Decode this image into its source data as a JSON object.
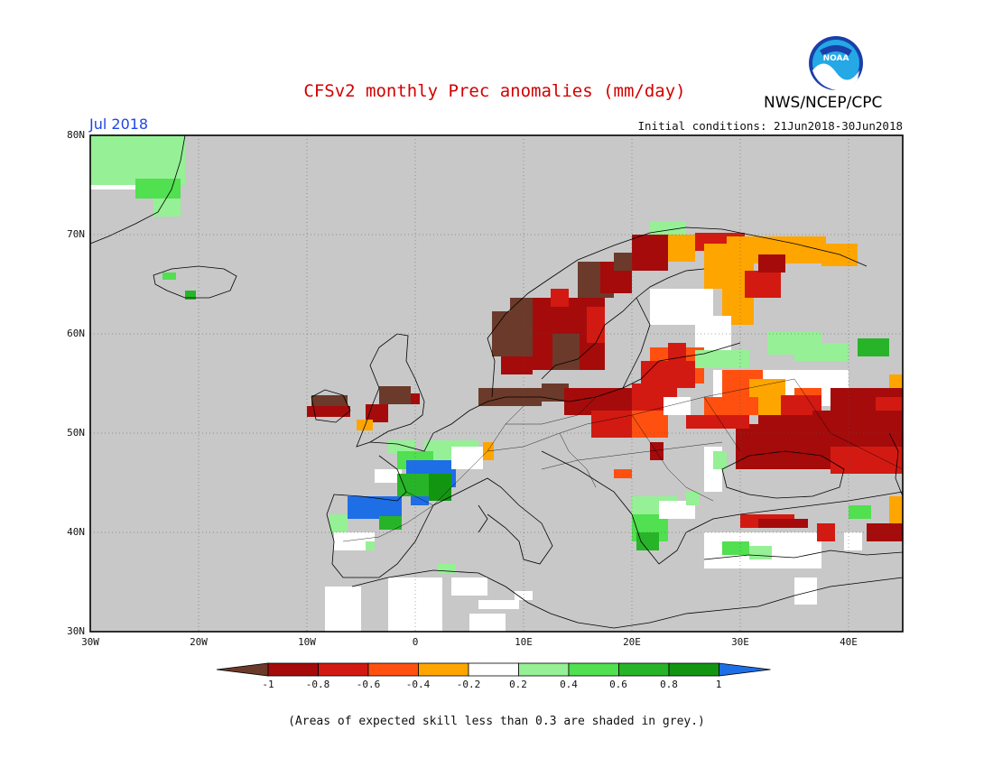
{
  "title": "CFSv2 monthly Prec anomalies (mm/day)",
  "org": "NWS/NCEP/CPC",
  "logo_text": "NOAA",
  "month": "Jul 2018",
  "initial_conditions": "Initial conditions: 21Jun2018-30Jun2018",
  "lat_labels": [
    "80N",
    "70N",
    "60N",
    "50N",
    "40N",
    "30N"
  ],
  "lon_labels": [
    "30W",
    "20W",
    "10W",
    "0",
    "10E",
    "20E",
    "30E",
    "40E"
  ],
  "colorbar": {
    "labels": [
      "-1",
      "-0.8",
      "-0.6",
      "-0.4",
      "-0.2",
      "0.2",
      "0.4",
      "0.6",
      "0.8",
      "1"
    ],
    "colors": [
      "#6b3a2a",
      "#a50b0b",
      "#d21a12",
      "#ff5010",
      "#ffa500",
      "#ffffff",
      "#96f096",
      "#50e050",
      "#28b428",
      "#129612",
      "#1e6ee6"
    ]
  },
  "grey_color": "#c8c8c8",
  "footnote": "(Areas of expected skill less than 0.3 are shaded in grey.)"
}
